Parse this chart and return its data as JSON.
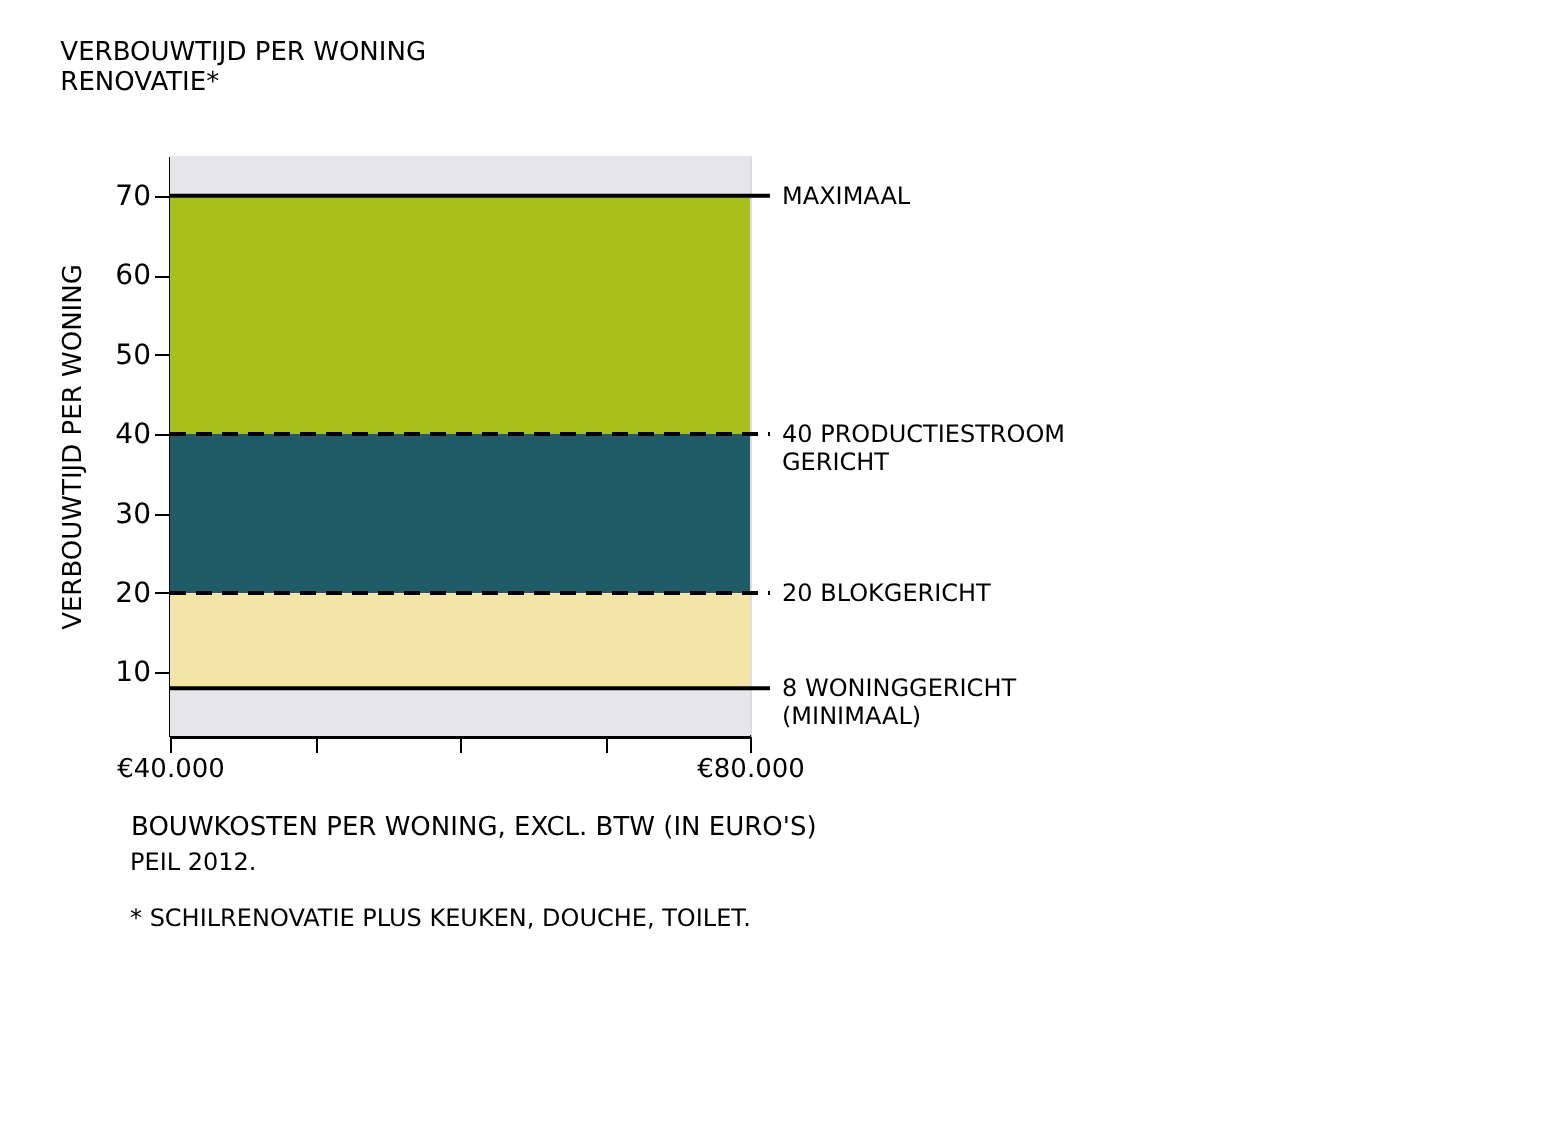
{
  "chart_data": {
    "type": "area",
    "title": "VERBOUWTIJD PER WONING\nRENOVATIE*",
    "ylabel": "VERBOUWTIJD PER WONING",
    "xlabel": "BOUWKOSTEN PER WONING, EXCL. BTW (IN EURO'S)",
    "annotations": [
      "PEIL 2012.",
      "* SCHILRENOVATIE PLUS KEUKEN, DOUCHE, TOILET."
    ],
    "x": [
      40000,
      80000
    ],
    "stacked": true,
    "series": [
      {
        "color": "#e6e6ea",
        "values": [
          8,
          8
        ]
      },
      {
        "color": "#f3e4a8",
        "values": [
          12,
          12
        ]
      },
      {
        "color": "#1f5c68",
        "values": [
          20,
          20
        ]
      },
      {
        "color": "#a9c01c",
        "values": [
          30,
          30
        ]
      }
    ],
    "xlim": [
      40000,
      80000
    ],
    "xticks": [
      {
        "value": 40000,
        "label": "€40.000"
      },
      {
        "value": 50000,
        "label": null
      },
      {
        "value": 60000,
        "label": null
      },
      {
        "value": 70000,
        "label": null
      },
      {
        "value": 80000,
        "label": "€80.000"
      }
    ],
    "ylim": [
      2,
      75
    ],
    "yticks": [
      10,
      20,
      30,
      40,
      50,
      60,
      70
    ],
    "bands": [
      {
        "axis": "y",
        "from": 70,
        "to": 75,
        "color": "#e6e6ea"
      }
    ],
    "ref_lines": [
      {
        "axis": "y",
        "value": 70,
        "label": "MAXIMAAL",
        "line_style": "solid"
      },
      {
        "axis": "y",
        "value": 40,
        "label": "40 PRODUCTIESTROOM\nGERICHT",
        "line_style": "dashed"
      },
      {
        "axis": "y",
        "value": 20,
        "label": "20 BLOKGERICHT",
        "line_style": "dashed"
      },
      {
        "axis": "y",
        "value": 8,
        "label": "8 WONINGGERICHT\n(MINIMAAL)",
        "line_style": "solid"
      }
    ]
  }
}
